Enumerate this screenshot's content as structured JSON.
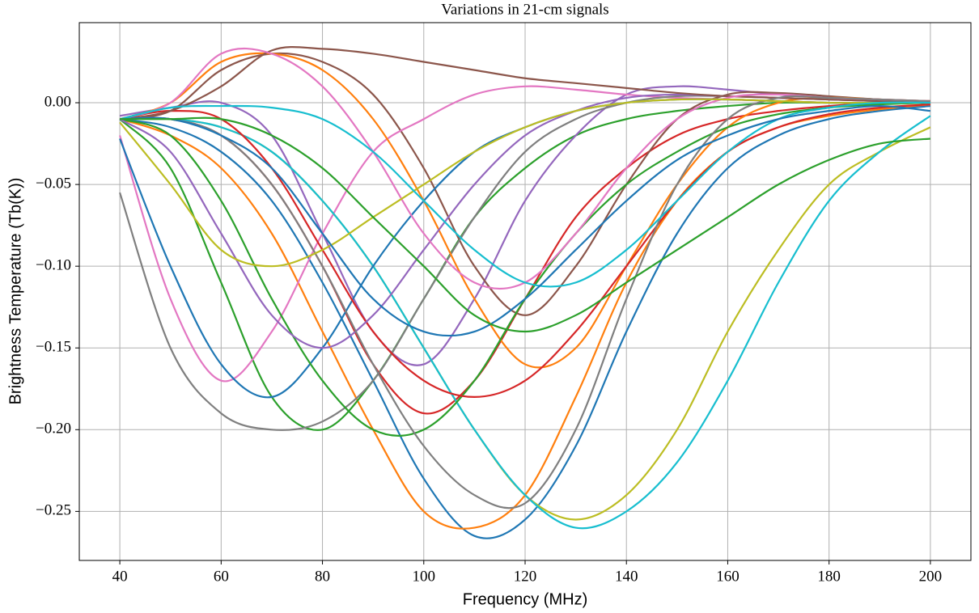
{
  "chart_data": {
    "type": "line",
    "title": "Variations in 21-cm signals",
    "x_label": "Frequency (MHz)",
    "y_label": "Brightness Temperature (Tb(K))",
    "grid": true,
    "xlim": [
      32,
      208
    ],
    "ylim": [
      -0.28,
      0.049
    ],
    "xticks": [
      40,
      60,
      80,
      100,
      120,
      140,
      160,
      180,
      200
    ],
    "yticks": [
      {
        "value": -0.25,
        "label": "−0.25"
      },
      {
        "value": -0.2,
        "label": "−0.20"
      },
      {
        "value": -0.15,
        "label": "−0.15"
      },
      {
        "value": -0.1,
        "label": "−0.10"
      },
      {
        "value": -0.05,
        "label": "−0.05"
      },
      {
        "value": 0,
        "label": "0.00"
      }
    ],
    "x": [
      40,
      50,
      60,
      70,
      80,
      90,
      100,
      110,
      120,
      130,
      140,
      150,
      160,
      170,
      180,
      190,
      200
    ],
    "series": [
      {
        "color": "#1f77b4",
        "values": [
          -0.01,
          -0.015,
          -0.03,
          -0.06,
          -0.11,
          -0.17,
          -0.23,
          -0.265,
          -0.255,
          -0.21,
          -0.14,
          -0.08,
          -0.04,
          -0.02,
          -0.01,
          -0.005,
          -0.002
        ]
      },
      {
        "color": "#ff7f0e",
        "values": [
          -0.01,
          -0.02,
          -0.04,
          -0.08,
          -0.14,
          -0.2,
          -0.25,
          -0.26,
          -0.24,
          -0.18,
          -0.11,
          -0.06,
          -0.03,
          -0.015,
          -0.008,
          -0.004,
          -0.001
        ]
      },
      {
        "color": "#2ca02c",
        "values": [
          -0.01,
          -0.04,
          -0.11,
          -0.18,
          -0.2,
          -0.17,
          -0.12,
          -0.07,
          -0.04,
          -0.02,
          -0.01,
          -0.005,
          -0.002,
          0,
          0,
          0,
          0
        ]
      },
      {
        "color": "#d62728",
        "values": [
          -0.01,
          -0.01,
          -0.02,
          -0.05,
          -0.1,
          -0.16,
          -0.19,
          -0.17,
          -0.12,
          -0.07,
          -0.04,
          -0.02,
          -0.01,
          -0.005,
          -0.002,
          0,
          0
        ]
      },
      {
        "color": "#9467bd",
        "values": [
          -0.008,
          -0.003,
          0,
          -0.02,
          -0.08,
          -0.14,
          -0.16,
          -0.12,
          -0.06,
          -0.02,
          0.005,
          0.01,
          0.008,
          0.005,
          0.003,
          0.001,
          0
        ]
      },
      {
        "color": "#8c564b",
        "values": [
          -0.01,
          -0.005,
          0.02,
          0.03,
          0.025,
          0.005,
          -0.04,
          -0.1,
          -0.13,
          -0.1,
          -0.05,
          -0.01,
          0.005,
          0.006,
          0.004,
          0.002,
          0.001
        ]
      },
      {
        "color": "#e377c2",
        "values": [
          -0.02,
          -0.12,
          -0.17,
          -0.14,
          -0.08,
          -0.03,
          -0.01,
          0.005,
          0.01,
          0.008,
          0.005,
          0.003,
          0.002,
          0.001,
          0,
          0,
          0
        ]
      },
      {
        "color": "#7f7f7f",
        "values": [
          -0.055,
          -0.15,
          -0.19,
          -0.2,
          -0.195,
          -0.17,
          -0.12,
          -0.07,
          -0.03,
          -0.01,
          0,
          0.004,
          0.004,
          0.003,
          0.002,
          0.001,
          0
        ]
      },
      {
        "color": "#bcbd22",
        "values": [
          -0.01,
          -0.01,
          -0.015,
          -0.03,
          -0.06,
          -0.1,
          -0.15,
          -0.2,
          -0.24,
          -0.255,
          -0.24,
          -0.2,
          -0.14,
          -0.09,
          -0.05,
          -0.03,
          -0.015
        ]
      },
      {
        "color": "#17becf",
        "values": [
          -0.01,
          -0.01,
          -0.015,
          -0.03,
          -0.06,
          -0.1,
          -0.15,
          -0.2,
          -0.24,
          -0.26,
          -0.25,
          -0.22,
          -0.17,
          -0.11,
          -0.06,
          -0.03,
          -0.008
        ]
      },
      {
        "color": "#1f77b4",
        "values": [
          -0.022,
          -0.1,
          -0.16,
          -0.18,
          -0.15,
          -0.1,
          -0.06,
          -0.03,
          -0.015,
          -0.005,
          0,
          0.002,
          0.002,
          0.001,
          0,
          0,
          0
        ]
      },
      {
        "color": "#ff7f0e",
        "values": [
          -0.01,
          0,
          0.025,
          0.03,
          0.02,
          -0.01,
          -0.06,
          -0.12,
          -0.16,
          -0.15,
          -0.1,
          -0.05,
          -0.015,
          0,
          0.003,
          0.002,
          0.001
        ]
      },
      {
        "color": "#2ca02c",
        "values": [
          -0.01,
          -0.02,
          -0.06,
          -0.12,
          -0.17,
          -0.2,
          -0.2,
          -0.17,
          -0.12,
          -0.08,
          -0.05,
          -0.03,
          -0.015,
          -0.007,
          -0.003,
          -0.001,
          0
        ]
      },
      {
        "color": "#d62728",
        "values": [
          -0.01,
          -0.005,
          -0.01,
          -0.04,
          -0.09,
          -0.14,
          -0.17,
          -0.18,
          -0.17,
          -0.14,
          -0.1,
          -0.06,
          -0.03,
          -0.015,
          -0.007,
          -0.003,
          -0.001
        ]
      },
      {
        "color": "#9467bd",
        "values": [
          -0.01,
          -0.03,
          -0.08,
          -0.13,
          -0.15,
          -0.13,
          -0.09,
          -0.05,
          -0.02,
          -0.005,
          0.003,
          0.005,
          0.004,
          0.003,
          0.002,
          0.001,
          0
        ]
      },
      {
        "color": "#8c564b",
        "values": [
          -0.01,
          -0.005,
          0.01,
          0.032,
          0.033,
          0.03,
          0.025,
          0.02,
          0.015,
          0.012,
          0.009,
          0.006,
          0.004,
          0.003,
          0.002,
          0.001,
          0
        ]
      },
      {
        "color": "#e377c2",
        "values": [
          -0.01,
          0,
          0.03,
          0.03,
          0.01,
          -0.03,
          -0.08,
          -0.11,
          -0.11,
          -0.08,
          -0.04,
          -0.01,
          0.003,
          0.005,
          0.003,
          0.002,
          0.001
        ]
      },
      {
        "color": "#7f7f7f",
        "values": [
          -0.01,
          -0.01,
          -0.02,
          -0.05,
          -0.1,
          -0.16,
          -0.21,
          -0.24,
          -0.245,
          -0.2,
          -0.12,
          -0.05,
          -0.01,
          0.003,
          0.003,
          0.002,
          0.001
        ]
      },
      {
        "color": "#bcbd22",
        "values": [
          -0.012,
          -0.05,
          -0.09,
          -0.1,
          -0.09,
          -0.07,
          -0.05,
          -0.03,
          -0.015,
          -0.005,
          0,
          0.002,
          0.002,
          0.001,
          0,
          0,
          0
        ]
      },
      {
        "color": "#17becf",
        "values": [
          -0.01,
          -0.003,
          -0.002,
          -0.003,
          -0.01,
          -0.03,
          -0.06,
          -0.09,
          -0.11,
          -0.11,
          -0.09,
          -0.06,
          -0.03,
          -0.01,
          -0.003,
          0,
          0
        ]
      },
      {
        "color": "#1f77b4",
        "values": [
          -0.01,
          -0.01,
          -0.02,
          -0.04,
          -0.08,
          -0.12,
          -0.14,
          -0.14,
          -0.12,
          -0.09,
          -0.06,
          -0.035,
          -0.02,
          -0.01,
          -0.005,
          -0.002,
          -0.005
        ]
      },
      {
        "color": "#2ca02c",
        "values": [
          -0.01,
          -0.01,
          -0.01,
          -0.02,
          -0.04,
          -0.07,
          -0.1,
          -0.13,
          -0.14,
          -0.13,
          -0.11,
          -0.09,
          -0.07,
          -0.05,
          -0.035,
          -0.025,
          -0.022
        ]
      }
    ]
  }
}
